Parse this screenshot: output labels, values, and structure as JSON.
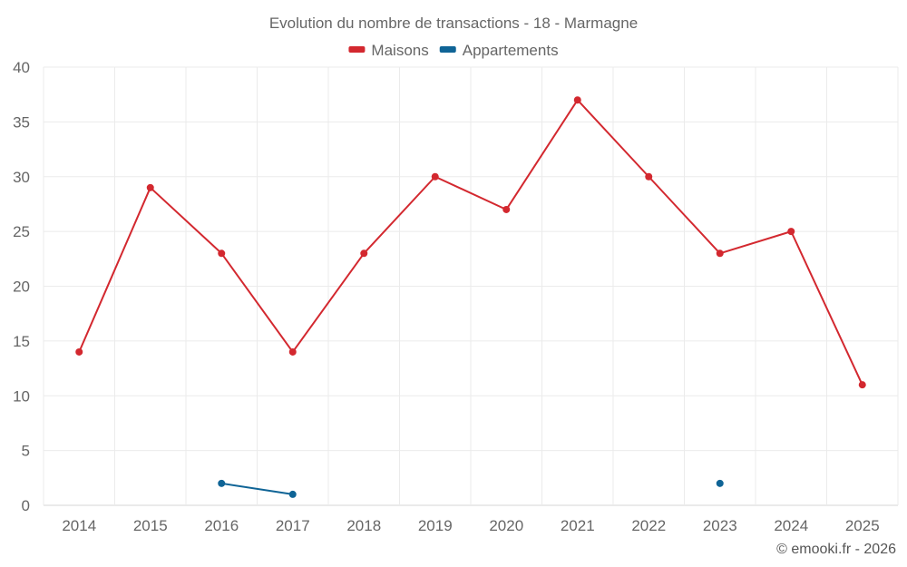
{
  "chart_data": {
    "type": "line",
    "title": "Evolution du nombre de transactions - 18 - Marmagne",
    "categories": [
      "2014",
      "2015",
      "2016",
      "2017",
      "2018",
      "2019",
      "2020",
      "2021",
      "2022",
      "2023",
      "2024",
      "2025"
    ],
    "ylim": [
      0,
      40
    ],
    "yticks": [
      0,
      5,
      10,
      15,
      20,
      25,
      30,
      35,
      40
    ],
    "grid": true,
    "legend_position": "top-center",
    "series": [
      {
        "name": "Maisons",
        "color": "#d3282f",
        "values": [
          14,
          29,
          23,
          14,
          23,
          30,
          27,
          37,
          30,
          23,
          25,
          11
        ]
      },
      {
        "name": "Appartements",
        "color": "#0f6496",
        "values": [
          null,
          null,
          2,
          1,
          null,
          null,
          null,
          null,
          null,
          2,
          null,
          null
        ]
      }
    ]
  },
  "credit": "© emooki.fr - 2026"
}
